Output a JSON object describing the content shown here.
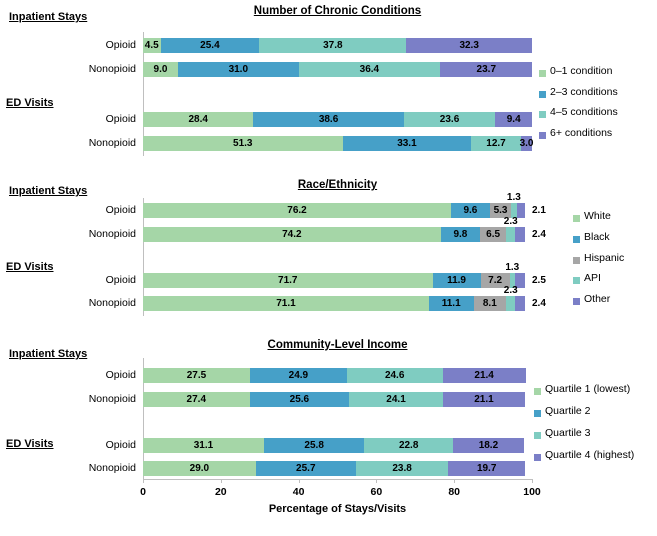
{
  "figure_title": "",
  "colors": {
    "green": "#A5D6A7",
    "blue": "#46A0C8",
    "teal": "#7FCCC1",
    "purple": "#7B7FC7",
    "gray": "#A6A6A6",
    "axis_line": "#BFBFBF",
    "text": "#000000"
  },
  "chart_data": [
    {
      "type": "bar",
      "stacked": true,
      "orientation": "horizontal",
      "title": "Number of Chronic Conditions",
      "group_labels": [
        "Inpatient Stays",
        "ED Visits"
      ],
      "categories": [
        "Inpatient Stays - Opioid",
        "Inpatient Stays - Nonopioid",
        "ED Visits - Opioid",
        "ED Visits - Nonopioid"
      ],
      "row_labels": [
        "Opioid",
        "Nonopioid",
        "Opioid",
        "Nonopioid"
      ],
      "series": [
        {
          "name": "0–1 condition",
          "color": "#A5D6A7",
          "label_position": "inside",
          "values": [
            4.5,
            9.0,
            28.4,
            51.3
          ]
        },
        {
          "name": "2–3 conditions",
          "color": "#46A0C8",
          "label_position": "inside",
          "values": [
            25.4,
            31.0,
            38.6,
            33.1
          ]
        },
        {
          "name": "4–5 conditions",
          "color": "#7FCCC1",
          "label_position": "inside",
          "values": [
            37.8,
            36.4,
            23.6,
            12.7
          ]
        },
        {
          "name": "6+ conditions",
          "color": "#7B7FC7",
          "label_position": "inside",
          "values": [
            32.3,
            23.7,
            9.4,
            3.0
          ]
        }
      ],
      "xlim": [
        0,
        100
      ],
      "grid": false,
      "legend_position": "right",
      "data_labels": true
    },
    {
      "type": "bar",
      "stacked": true,
      "orientation": "horizontal",
      "title": "Race/Ethnicity",
      "group_labels": [
        "Inpatient Stays",
        "ED Visits"
      ],
      "categories": [
        "Inpatient Stays - Opioid",
        "Inpatient Stays - Nonopioid",
        "ED Visits - Opioid",
        "ED Visits - Nonopioid"
      ],
      "row_labels": [
        "Opioid",
        "Nonopioid",
        "Opioid",
        "Nonopioid"
      ],
      "normalize_to": 98.2,
      "series": [
        {
          "name": "White",
          "color": "#A5D6A7",
          "label_position": "inside",
          "values": [
            76.2,
            74.2,
            71.7,
            71.1
          ]
        },
        {
          "name": "Black",
          "color": "#46A0C8",
          "label_position": "inside",
          "values": [
            9.6,
            9.8,
            11.9,
            11.1
          ]
        },
        {
          "name": "Hispanic",
          "color": "#A6A6A6",
          "label_position": "inside",
          "values": [
            5.3,
            6.5,
            7.2,
            8.1
          ]
        },
        {
          "name": "API",
          "color": "#7FCCC1",
          "label_position": "above",
          "values": [
            1.3,
            2.3,
            1.3,
            2.3
          ]
        },
        {
          "name": "Other",
          "color": "#7B7FC7",
          "label_position": "outside",
          "values": [
            2.1,
            2.4,
            2.5,
            2.4
          ]
        }
      ],
      "xlim": [
        0,
        100
      ],
      "grid": false,
      "legend_position": "right",
      "data_labels": true
    },
    {
      "type": "bar",
      "stacked": true,
      "orientation": "horizontal",
      "title": "Community-Level Income",
      "group_labels": [
        "Inpatient Stays",
        "ED Visits"
      ],
      "categories": [
        "Inpatient Stays - Opioid",
        "Inpatient Stays - Nonopioid",
        "ED Visits - Opioid",
        "ED Visits - Nonopioid"
      ],
      "row_labels": [
        "Opioid",
        "Nonopioid",
        "Opioid",
        "Nonopioid"
      ],
      "series": [
        {
          "name": "Quartile 1 (lowest)",
          "color": "#A5D6A7",
          "label_position": "inside",
          "values": [
            27.5,
            27.4,
            31.1,
            29.0
          ]
        },
        {
          "name": "Quartile 2",
          "color": "#46A0C8",
          "label_position": "inside",
          "values": [
            24.9,
            25.6,
            25.8,
            25.7
          ]
        },
        {
          "name": "Quartile 3",
          "color": "#7FCCC1",
          "label_position": "inside",
          "values": [
            24.6,
            24.1,
            22.8,
            23.8
          ]
        },
        {
          "name": "Quartile 4 (highest)",
          "color": "#7B7FC7",
          "label_position": "inside",
          "values": [
            21.4,
            21.1,
            18.2,
            19.7
          ]
        }
      ],
      "xlim": [
        0,
        100
      ],
      "x_ticks": [
        0,
        20,
        40,
        60,
        80,
        100
      ],
      "xlabel": "Percentage of Stays/Visits",
      "grid": false,
      "legend_position": "right",
      "data_labels": true
    }
  ]
}
